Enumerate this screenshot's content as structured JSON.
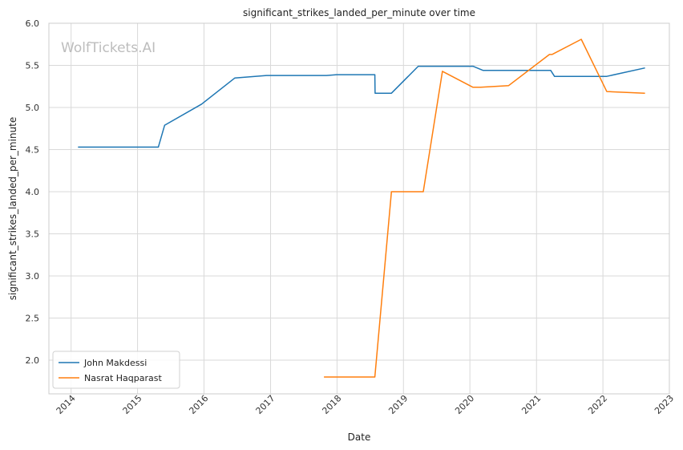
{
  "chart_data": {
    "type": "line",
    "title": "significant_strikes_landed_per_minute over time",
    "xlabel": "Date",
    "ylabel": "significant_strikes_landed_per_minute",
    "watermark": "WolfTickets.AI",
    "xlim": [
      "2013-09-01",
      "2023-01-01"
    ],
    "ylim": [
      1.6,
      6.0
    ],
    "x_ticks": [
      "2014",
      "2015",
      "2016",
      "2017",
      "2018",
      "2019",
      "2020",
      "2021",
      "2022",
      "2023"
    ],
    "y_ticks": [
      "2.0",
      "2.5",
      "3.0",
      "3.5",
      "4.0",
      "4.5",
      "5.0",
      "5.5",
      "6.0"
    ],
    "grid": true,
    "legend_position": "lower-left",
    "series": [
      {
        "name": "John Makdessi",
        "color": "#1f77b4",
        "points": [
          [
            "2014-02-08",
            4.53
          ],
          [
            "2015-04-25",
            4.53
          ],
          [
            "2015-05-30",
            4.79
          ],
          [
            "2015-12-19",
            5.04
          ],
          [
            "2016-06-18",
            5.35
          ],
          [
            "2016-12-10",
            5.38
          ],
          [
            "2017-11-04",
            5.38
          ],
          [
            "2017-12-30",
            5.39
          ],
          [
            "2018-07-28",
            5.39
          ],
          [
            "2018-07-29",
            5.17
          ],
          [
            "2018-10-27",
            5.17
          ],
          [
            "2019-03-23",
            5.49
          ],
          [
            "2020-01-18",
            5.49
          ],
          [
            "2020-03-14",
            5.44
          ],
          [
            "2021-03-20",
            5.44
          ],
          [
            "2021-04-10",
            5.37
          ],
          [
            "2022-01-22",
            5.37
          ],
          [
            "2022-08-20",
            5.47
          ]
        ]
      },
      {
        "name": "Nasrat Haqparast",
        "color": "#ff7f0e",
        "points": [
          [
            "2017-10-21",
            1.8
          ],
          [
            "2018-07-28",
            1.8
          ],
          [
            "2018-10-27",
            4.0
          ],
          [
            "2019-04-20",
            4.0
          ],
          [
            "2019-08-03",
            5.43
          ],
          [
            "2020-01-18",
            5.24
          ],
          [
            "2020-02-29",
            5.24
          ],
          [
            "2020-08-01",
            5.26
          ],
          [
            "2021-03-13",
            5.63
          ],
          [
            "2021-03-27",
            5.63
          ],
          [
            "2021-09-04",
            5.81
          ],
          [
            "2022-01-22",
            5.19
          ],
          [
            "2022-08-20",
            5.17
          ]
        ]
      }
    ]
  }
}
